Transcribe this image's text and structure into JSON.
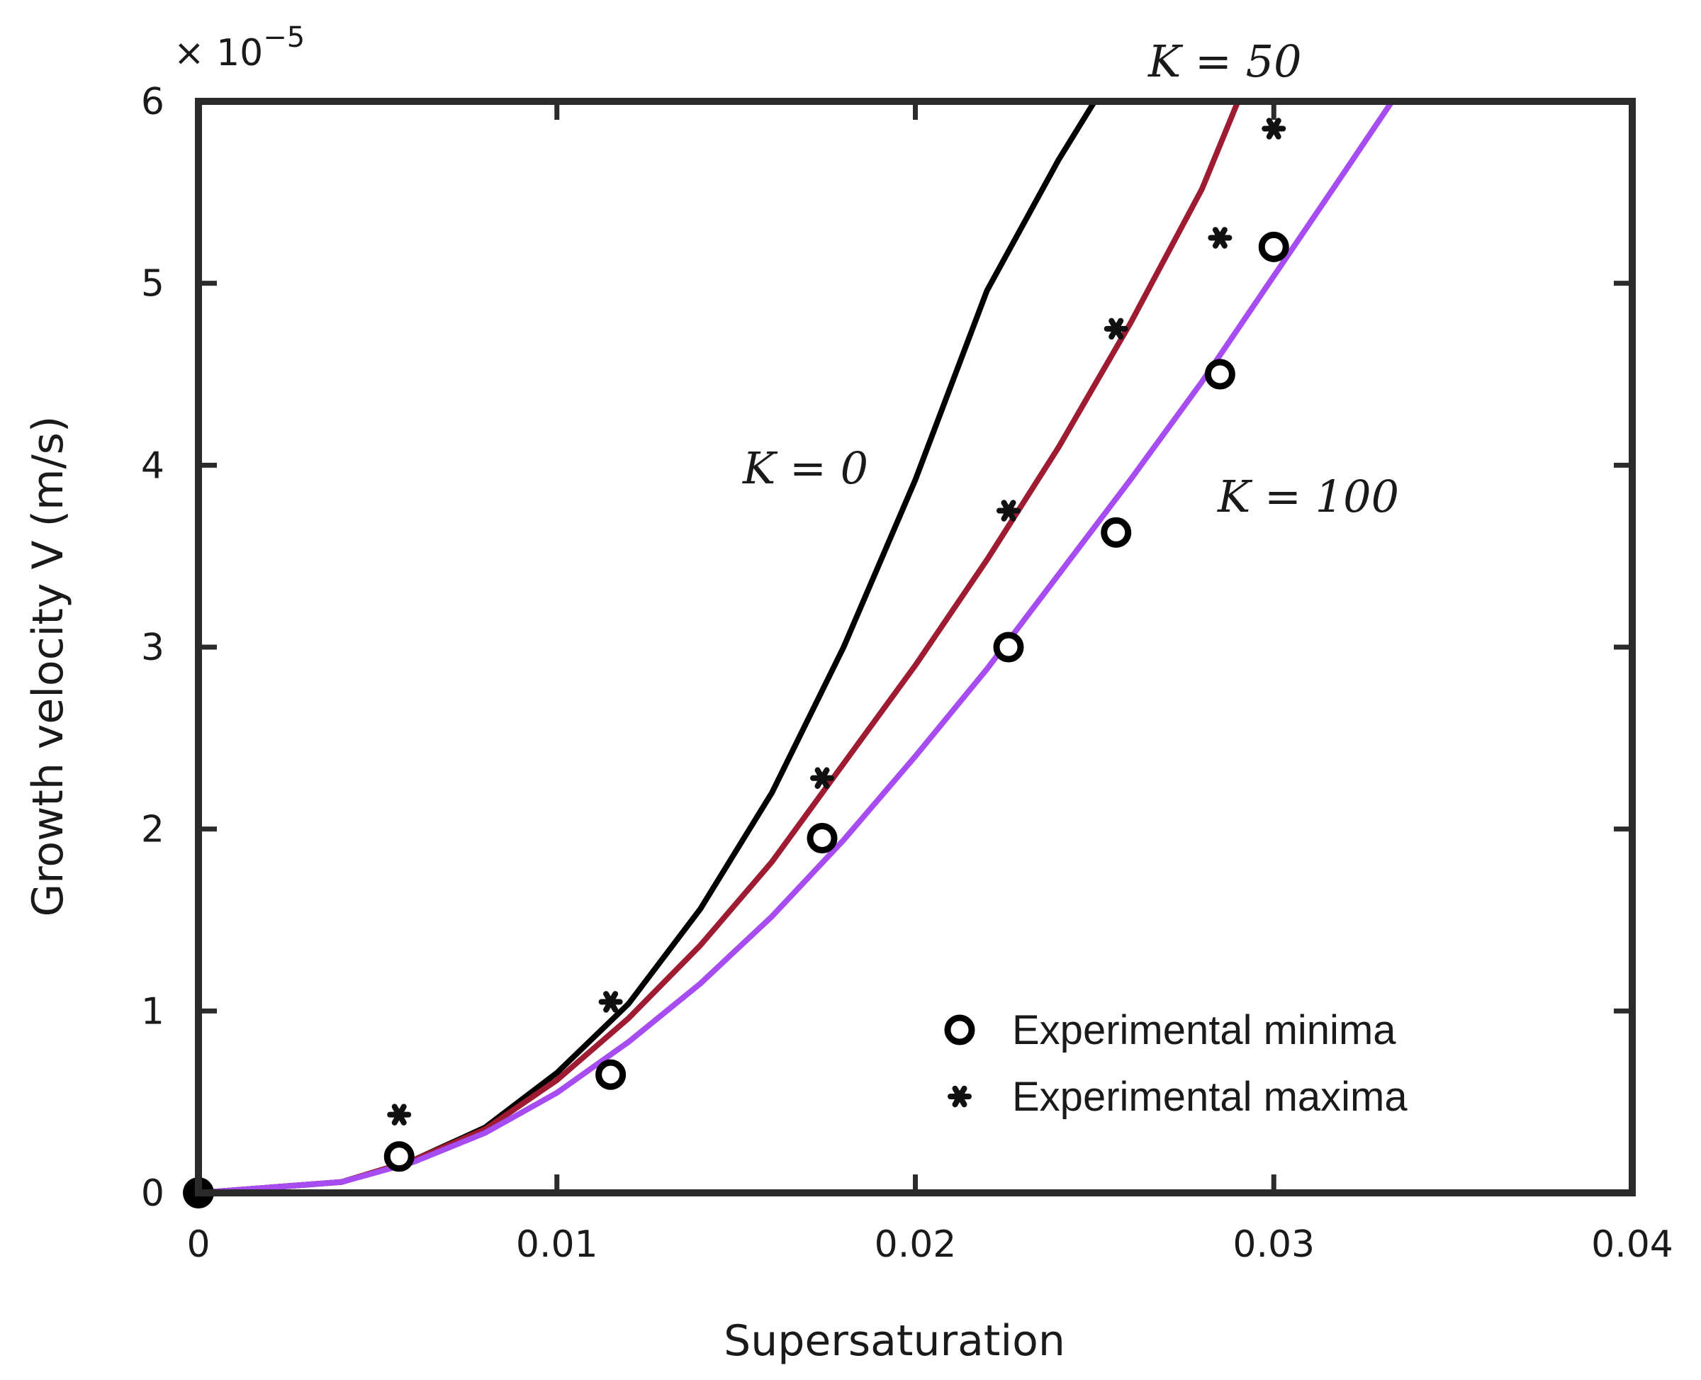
{
  "chart_data": {
    "type": "line",
    "title": "",
    "xlabel": "Supersaturation",
    "ylabel": "Growth velocity V (m/s)",
    "y_multiplier_label": "× 10",
    "y_multiplier_exponent": "−5",
    "xlim": [
      0,
      0.04
    ],
    "ylim": [
      0,
      6
    ],
    "grid": false,
    "x_ticks": [
      {
        "value": 0,
        "label": "0"
      },
      {
        "value": 0.01,
        "label": "0.01"
      },
      {
        "value": 0.02,
        "label": "0.02"
      },
      {
        "value": 0.03,
        "label": "0.03"
      },
      {
        "value": 0.04,
        "label": "0.04"
      }
    ],
    "y_ticks": [
      {
        "value": 0,
        "label": "0"
      },
      {
        "value": 1,
        "label": "1"
      },
      {
        "value": 2,
        "label": "2"
      },
      {
        "value": 3,
        "label": "3"
      },
      {
        "value": 4,
        "label": "4"
      },
      {
        "value": 5,
        "label": "5"
      },
      {
        "value": 6,
        "label": "6"
      }
    ],
    "series": [
      {
        "name": "K = 0",
        "label": "K = 0",
        "color": "#000000",
        "x": [
          0,
          0.004,
          0.006,
          0.008,
          0.01,
          0.012,
          0.014,
          0.016,
          0.018,
          0.02,
          0.022,
          0.024,
          0.025,
          0.029
        ],
        "y": [
          0,
          0.06,
          0.18,
          0.36,
          0.66,
          1.04,
          1.56,
          2.2,
          3.0,
          3.92,
          4.96,
          5.68,
          6.0,
          6.0
        ]
      },
      {
        "name": "K = 50",
        "label": "K = 50",
        "color": "#9e1b32",
        "x": [
          0,
          0.004,
          0.006,
          0.008,
          0.01,
          0.012,
          0.014,
          0.016,
          0.018,
          0.02,
          0.022,
          0.024,
          0.026,
          0.028,
          0.029,
          0.035
        ],
        "y": [
          0,
          0.06,
          0.18,
          0.35,
          0.62,
          0.96,
          1.36,
          1.82,
          2.36,
          2.9,
          3.48,
          4.1,
          4.78,
          5.52,
          6.0,
          6.0
        ]
      },
      {
        "name": "K = 100",
        "label": "K = 100",
        "color": "#a64cf0",
        "x": [
          0,
          0.004,
          0.006,
          0.008,
          0.01,
          0.012,
          0.014,
          0.016,
          0.018,
          0.02,
          0.022,
          0.024,
          0.026,
          0.028,
          0.03,
          0.032,
          0.0333
        ],
        "y": [
          0,
          0.06,
          0.17,
          0.33,
          0.55,
          0.83,
          1.15,
          1.52,
          1.94,
          2.4,
          2.88,
          3.4,
          3.92,
          4.46,
          5.04,
          5.62,
          6.0
        ]
      }
    ],
    "scatter": [
      {
        "name": "Experimental minima",
        "marker": "open-circle",
        "x": [
          0,
          0.0056,
          0.0115,
          0.0174,
          0.0226,
          0.0256,
          0.0285,
          0.03
        ],
        "y": [
          0,
          0.2,
          0.65,
          1.95,
          3.0,
          3.63,
          4.5,
          5.2
        ]
      },
      {
        "name": "Experimental maxima",
        "marker": "asterisk",
        "x": [
          0.0056,
          0.0115,
          0.0174,
          0.0226,
          0.0256,
          0.0285,
          0.03
        ],
        "y": [
          0.43,
          1.05,
          2.28,
          3.75,
          4.75,
          5.25,
          5.85
        ]
      }
    ],
    "legend": {
      "position": "bottom-right",
      "entries": [
        {
          "marker": "open-circle",
          "label": "Experimental minima"
        },
        {
          "marker": "asterisk",
          "label": "Experimental maxima"
        }
      ]
    }
  }
}
